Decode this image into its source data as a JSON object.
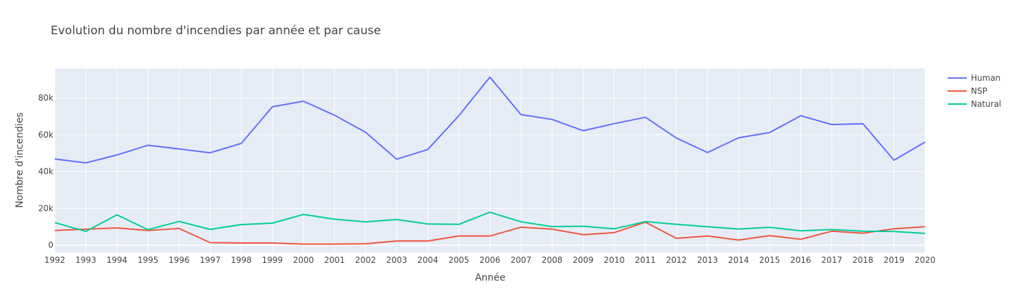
{
  "chart_data": {
    "type": "line",
    "title": "Evolution du nombre d'incendies par année et par cause",
    "xlabel": "Année",
    "ylabel": "Nombre d'incendies",
    "x": [
      1992,
      1993,
      1994,
      1995,
      1996,
      1997,
      1998,
      1999,
      2000,
      2001,
      2002,
      2003,
      2004,
      2005,
      2006,
      2007,
      2008,
      2009,
      2010,
      2011,
      2012,
      2013,
      2014,
      2015,
      2016,
      2017,
      2018,
      2019,
      2020
    ],
    "xlim": [
      1992,
      2020
    ],
    "ylim": [
      -4000,
      96000
    ],
    "yticks": [
      0,
      20000,
      40000,
      60000,
      80000
    ],
    "ytick_labels": [
      "0",
      "20k",
      "40k",
      "60k",
      "80k"
    ],
    "grid": true,
    "legend_position": "top-right",
    "background": "#E5ECF6",
    "series": [
      {
        "name": "Human",
        "color": "#636EFA",
        "values": [
          46800,
          44700,
          49000,
          54300,
          52300,
          50200,
          55300,
          75200,
          78200,
          70600,
          61300,
          46700,
          52000,
          70300,
          91300,
          70900,
          68300,
          62200,
          66000,
          69500,
          58200,
          50300,
          58300,
          61200,
          70300,
          65500,
          66000,
          46200,
          56000
        ]
      },
      {
        "name": "NSP",
        "color": "#EF553B",
        "values": [
          8000,
          8700,
          9400,
          8000,
          9100,
          1400,
          1200,
          1200,
          600,
          600,
          800,
          2300,
          2300,
          5000,
          5000,
          9800,
          8700,
          5700,
          6800,
          12500,
          3700,
          5000,
          2800,
          5200,
          3200,
          7600,
          6500,
          8900,
          10000
        ]
      },
      {
        "name": "Natural",
        "color": "#00CC96",
        "values": [
          12300,
          7500,
          16500,
          8400,
          12900,
          8600,
          11200,
          12000,
          16700,
          14100,
          12700,
          13900,
          11500,
          11300,
          17900,
          12700,
          10100,
          10300,
          8900,
          12800,
          11300,
          10000,
          8800,
          9700,
          7800,
          8500,
          7600,
          7400,
          6400
        ]
      }
    ]
  }
}
